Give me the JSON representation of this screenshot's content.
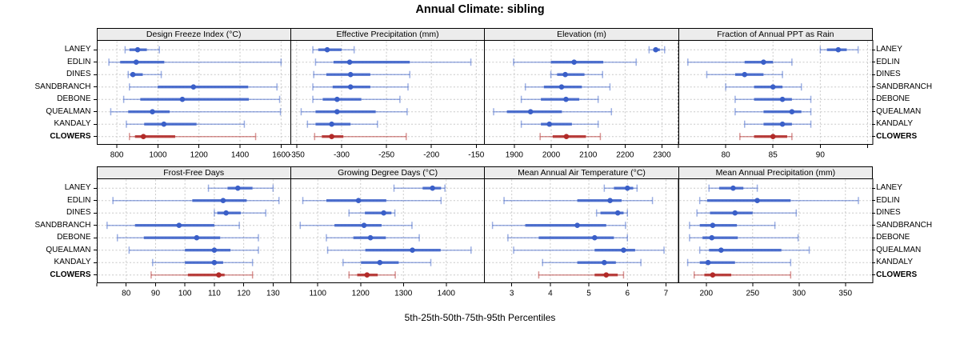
{
  "title": "Annual Climate: sibling",
  "caption": "5th-25th-50th-75th-95th Percentiles",
  "chart_type": "trellis-dotplot",
  "sites": [
    "LANEY",
    "EDLIN",
    "DINES",
    "SANDBRANCH",
    "DEBONE",
    "QUEALMAN",
    "KANDALY",
    "CLOWERS"
  ],
  "highlight_site": "CLOWERS",
  "percentiles": [
    5,
    25,
    50,
    75,
    95
  ],
  "colors": {
    "series": "#3a5fc8",
    "series_light": "rgba(58,95,200,0.5)",
    "highlight": "#b22a28",
    "highlight_light": "rgba(178,42,40,0.5)",
    "grid": "#c8c8c8",
    "strip_bg": "#ececec",
    "border": "#000000"
  },
  "chart_data": [
    {
      "type": "dotplot",
      "title": "Design Freeze Index (°C)",
      "row": 0,
      "col": 0,
      "xlim": [
        702,
        1647
      ],
      "ticks": [
        {
          "v": 800,
          "label": "800"
        },
        {
          "v": 1000,
          "label": "1000"
        },
        {
          "v": 1200,
          "label": "1200"
        },
        {
          "v": 1400,
          "label": "1400"
        },
        {
          "v": 1600,
          "label": "1600"
        }
      ],
      "values": [
        [
          840,
          861,
          901,
          946,
          1007
        ],
        [
          761,
          816,
          894,
          1031,
          1600
        ],
        [
          855,
          865,
          878,
          926,
          1016
        ],
        [
          861,
          999,
          1173,
          1440,
          1580
        ],
        [
          833,
          914,
          1119,
          1443,
          1593
        ],
        [
          770,
          855,
          973,
          1057,
          1597
        ],
        [
          846,
          933,
          1029,
          1188,
          1421
        ],
        [
          861,
          888,
          929,
          1084,
          1476
        ]
      ]
    },
    {
      "type": "dotplot",
      "title": "Effective Precipitation (mm)",
      "row": 0,
      "col": 1,
      "xlim": [
        -357,
        -141
      ],
      "ticks": [
        {
          "v": -350,
          "label": "-350"
        },
        {
          "v": -300,
          "label": "-300"
        },
        {
          "v": -250,
          "label": "-250"
        },
        {
          "v": -200,
          "label": "-200"
        },
        {
          "v": -150,
          "label": "-150"
        }
      ],
      "values": [
        [
          -332,
          -326,
          -316,
          -300,
          -286
        ],
        [
          -329,
          -309,
          -291,
          -224,
          -156
        ],
        [
          -331,
          -317,
          -290,
          -268,
          -224
        ],
        [
          -332,
          -310,
          -290,
          -268,
          -226
        ],
        [
          -332,
          -321,
          -305,
          -278,
          -235
        ],
        [
          -345,
          -329,
          -305,
          -262,
          -227
        ],
        [
          -338,
          -329,
          -311,
          -290,
          -260
        ],
        [
          -330,
          -322,
          -311,
          -298,
          -228
        ]
      ]
    },
    {
      "type": "dotplot",
      "title": "Elevation (m)",
      "row": 0,
      "col": 2,
      "xlim": [
        1818,
        2343
      ],
      "ticks": [
        {
          "v": 1900,
          "label": "1900"
        },
        {
          "v": 2000,
          "label": "2000"
        },
        {
          "v": 2100,
          "label": "2100"
        },
        {
          "v": 2200,
          "label": "2200"
        },
        {
          "v": 2300,
          "label": "2300"
        }
      ],
      "values": [
        [
          2265,
          2276,
          2283,
          2294,
          2307
        ],
        [
          1898,
          1999,
          2062,
          2141,
          2230
        ],
        [
          1999,
          2016,
          2038,
          2090,
          2139
        ],
        [
          1930,
          1980,
          2028,
          2083,
          2159
        ],
        [
          1919,
          1972,
          2040,
          2076,
          2127
        ],
        [
          1844,
          1880,
          1944,
          2029,
          2163
        ],
        [
          1919,
          1972,
          1995,
          2056,
          2127
        ],
        [
          1970,
          2004,
          2041,
          2094,
          2133
        ]
      ]
    },
    {
      "type": "dotplot",
      "title": "Fraction of Annual PPT as Rain",
      "row": 0,
      "col": 3,
      "xlim": [
        75,
        95.5
      ],
      "ticks": [
        {
          "v": 75,
          "label": ""
        },
        {
          "v": 80,
          "label": "80"
        },
        {
          "v": 85,
          "label": "85"
        },
        {
          "v": 90,
          "label": "90"
        },
        {
          "v": 95,
          "label": ""
        }
      ],
      "values": [
        [
          90,
          90.7,
          91.9,
          92.8,
          94
        ],
        [
          76,
          82,
          84,
          85,
          87
        ],
        [
          78,
          81,
          82,
          84,
          86
        ],
        [
          80,
          83,
          85,
          86,
          88
        ],
        [
          81,
          83,
          86,
          87,
          89
        ],
        [
          81,
          84,
          87,
          88,
          89
        ],
        [
          82,
          84,
          86,
          87,
          89
        ],
        [
          81.5,
          83,
          85,
          86.5,
          87
        ]
      ]
    },
    {
      "type": "dotplot",
      "title": "Frost-Free Days",
      "row": 1,
      "col": 0,
      "xlim": [
        70,
        136
      ],
      "ticks": [
        {
          "v": 70,
          "label": ""
        },
        {
          "v": 80,
          "label": "80"
        },
        {
          "v": 90,
          "label": "90"
        },
        {
          "v": 100,
          "label": "100"
        },
        {
          "v": 110,
          "label": "110"
        },
        {
          "v": 120,
          "label": "120"
        },
        {
          "v": 130,
          "label": "130"
        }
      ],
      "values": [
        [
          108,
          114.5,
          118,
          123,
          130
        ],
        [
          75.5,
          102.5,
          113,
          121,
          132
        ],
        [
          110,
          111,
          114,
          119,
          127.5
        ],
        [
          73.5,
          83,
          98,
          110,
          118.5
        ],
        [
          77,
          86,
          104,
          112,
          125
        ],
        [
          81,
          100,
          110,
          115.5,
          125
        ],
        [
          89,
          100,
          110,
          113,
          123
        ],
        [
          88.5,
          101,
          111.5,
          113.5,
          123
        ]
      ]
    },
    {
      "type": "dotplot",
      "title": "Growing Degree Days (°C)",
      "row": 1,
      "col": 1,
      "xlim": [
        1036,
        1489
      ],
      "ticks": [
        {
          "v": 1100,
          "label": "1100"
        },
        {
          "v": 1200,
          "label": "1200"
        },
        {
          "v": 1300,
          "label": "1300"
        },
        {
          "v": 1400,
          "label": "1400"
        }
      ],
      "values": [
        [
          1278,
          1345,
          1368,
          1388,
          1397
        ],
        [
          1065,
          1120,
          1195,
          1260,
          1388
        ],
        [
          1173,
          1210,
          1254,
          1272,
          1280
        ],
        [
          1059,
          1139,
          1208,
          1249,
          1320
        ],
        [
          1120,
          1183,
          1223,
          1259,
          1337
        ],
        [
          1123,
          1211,
          1321,
          1387,
          1458
        ],
        [
          1159,
          1201,
          1245,
          1289,
          1364
        ],
        [
          1173,
          1192,
          1215,
          1240,
          1281
        ]
      ]
    },
    {
      "type": "dotplot",
      "title": "Mean Annual Air Temperature (°C)",
      "row": 1,
      "col": 2,
      "xlim": [
        2.28,
        7.31
      ],
      "ticks": [
        {
          "v": 3,
          "label": "3"
        },
        {
          "v": 4,
          "label": "4"
        },
        {
          "v": 5,
          "label": "5"
        },
        {
          "v": 6,
          "label": "6"
        },
        {
          "v": 7,
          "label": "7"
        }
      ],
      "values": [
        [
          5.4,
          5.65,
          6.0,
          6.15,
          6.25
        ],
        [
          2.8,
          4.7,
          5.55,
          5.85,
          6.65
        ],
        [
          5.2,
          5.3,
          5.75,
          5.9,
          6.0
        ],
        [
          2.5,
          3.35,
          4.7,
          5.45,
          5.95
        ],
        [
          2.9,
          3.7,
          5.15,
          5.65,
          6.0
        ],
        [
          3.05,
          5.15,
          5.9,
          6.2,
          6.95
        ],
        [
          3.8,
          4.7,
          5.4,
          5.7,
          6.35
        ],
        [
          3.7,
          5.15,
          5.45,
          5.75,
          5.9
        ]
      ]
    },
    {
      "type": "dotplot",
      "title": "Mean Annual Precipitation (mm)",
      "row": 1,
      "col": 3,
      "xlim": [
        170,
        379
      ],
      "ticks": [
        {
          "v": 200,
          "label": "200"
        },
        {
          "v": 250,
          "label": "250"
        },
        {
          "v": 300,
          "label": "300"
        },
        {
          "v": 350,
          "label": "350"
        }
      ],
      "values": [
        [
          203,
          214,
          229,
          240,
          255
        ],
        [
          193,
          201,
          255,
          291,
          364
        ],
        [
          190,
          204,
          231,
          250,
          297
        ],
        [
          182,
          193,
          207,
          233,
          274
        ],
        [
          182,
          196,
          206,
          234,
          299
        ],
        [
          193,
          203,
          216,
          281,
          311
        ],
        [
          180,
          193,
          202,
          231,
          291
        ],
        [
          187,
          198,
          207,
          227,
          291
        ]
      ]
    }
  ]
}
